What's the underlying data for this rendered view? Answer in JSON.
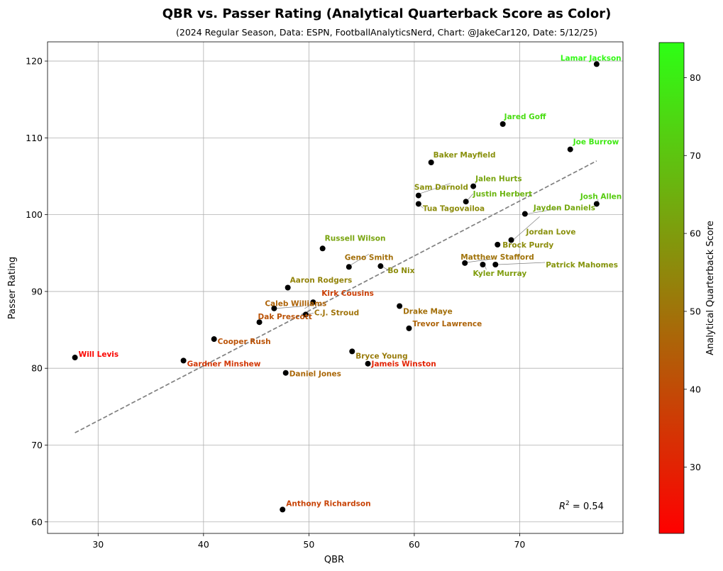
{
  "chart_data": {
    "type": "scatter",
    "title": "QBR vs. Passer Rating (Analytical Quarterback Score as Color)",
    "subtitle": "(2024 Regular Season, Data: ESPN, FootballAnalyticsNerd, Chart: @JakeCar120, Date: 5/12/25)",
    "xlabel": "QBR",
    "ylabel": "Passer Rating",
    "colorbar_label": "Analytical Quarterback Score",
    "xlim": [
      25.2,
      79.8
    ],
    "ylim": [
      58.5,
      122.5
    ],
    "xticks": [
      30,
      40,
      50,
      60,
      70
    ],
    "yticks": [
      60,
      70,
      80,
      90,
      100,
      110,
      120
    ],
    "colorbar_range": [
      21.5,
      84.5
    ],
    "colorbar_ticks": [
      30,
      40,
      50,
      60,
      70,
      80
    ],
    "colormap": [
      "#ff0000",
      "#2dff15"
    ],
    "grid": true,
    "r2_label": "R² = 0.54",
    "trendline": {
      "x": [
        27.8,
        77.3
      ],
      "y": [
        71.6,
        107.0
      ]
    },
    "points": [
      {
        "name": "Lamar Jackson",
        "qbr": 77.3,
        "rating": 119.6,
        "score": 83
      },
      {
        "name": "Jared Goff",
        "qbr": 68.4,
        "rating": 111.8,
        "score": 76
      },
      {
        "name": "Joe Burrow",
        "qbr": 74.8,
        "rating": 108.5,
        "score": 79
      },
      {
        "name": "Baker Mayfield",
        "qbr": 61.6,
        "rating": 106.8,
        "score": 57
      },
      {
        "name": "Jalen Hurts",
        "qbr": 65.6,
        "rating": 103.7,
        "score": 62
      },
      {
        "name": "Sam Darnold",
        "qbr": 60.4,
        "rating": 102.5,
        "score": 57
      },
      {
        "name": "Justin Herbert",
        "qbr": 64.9,
        "rating": 101.7,
        "score": 66
      },
      {
        "name": "Tua Tagovailoa",
        "qbr": 60.4,
        "rating": 101.4,
        "score": 56
      },
      {
        "name": "Josh Allen",
        "qbr": 77.3,
        "rating": 101.4,
        "score": 72
      },
      {
        "name": "Jayden Daniels",
        "qbr": 70.5,
        "rating": 100.1,
        "score": 63
      },
      {
        "name": "Jordan Love",
        "qbr": 69.2,
        "rating": 96.7,
        "score": 57
      },
      {
        "name": "Brock Purdy",
        "qbr": 67.9,
        "rating": 96.1,
        "score": 56
      },
      {
        "name": "Russell Wilson",
        "qbr": 51.3,
        "rating": 95.6,
        "score": 62
      },
      {
        "name": "Matthew Stafford",
        "qbr": 64.8,
        "rating": 93.7,
        "score": 50
      },
      {
        "name": "Patrick Mahomes",
        "qbr": 67.7,
        "rating": 93.5,
        "score": 58
      },
      {
        "name": "Kyler Murray",
        "qbr": 66.5,
        "rating": 93.5,
        "score": 60
      },
      {
        "name": "Bo Nix",
        "qbr": 56.8,
        "rating": 93.3,
        "score": 56
      },
      {
        "name": "Geno Smith",
        "qbr": 53.8,
        "rating": 93.2,
        "score": 49
      },
      {
        "name": "Aaron Rodgers",
        "qbr": 48.0,
        "rating": 90.5,
        "score": 54
      },
      {
        "name": "Kirk Cousins",
        "qbr": 50.4,
        "rating": 88.6,
        "score": 37
      },
      {
        "name": "Drake Maye",
        "qbr": 58.6,
        "rating": 88.1,
        "score": 49
      },
      {
        "name": "Caleb Williams",
        "qbr": 46.7,
        "rating": 87.8,
        "score": 46
      },
      {
        "name": "C.J. Stroud",
        "qbr": 49.7,
        "rating": 87.0,
        "score": 50
      },
      {
        "name": "Dak Prescott",
        "qbr": 45.3,
        "rating": 86.0,
        "score": 42
      },
      {
        "name": "Trevor Lawrence",
        "qbr": 59.5,
        "rating": 85.2,
        "score": 46
      },
      {
        "name": "Cooper Rush",
        "qbr": 41.0,
        "rating": 83.8,
        "score": 42
      },
      {
        "name": "Bryce Young",
        "qbr": 54.1,
        "rating": 82.2,
        "score": 52
      },
      {
        "name": "Will Levis",
        "qbr": 27.8,
        "rating": 81.4,
        "score": 23
      },
      {
        "name": "Gardner Minshew",
        "qbr": 38.1,
        "rating": 81.0,
        "score": 35
      },
      {
        "name": "Jameis Winston",
        "qbr": 55.6,
        "rating": 80.6,
        "score": 30
      },
      {
        "name": "Daniel Jones",
        "qbr": 47.8,
        "rating": 79.4,
        "score": 47
      },
      {
        "name": "Anthony Richardson",
        "qbr": 47.5,
        "rating": 61.6,
        "score": 38
      }
    ]
  }
}
